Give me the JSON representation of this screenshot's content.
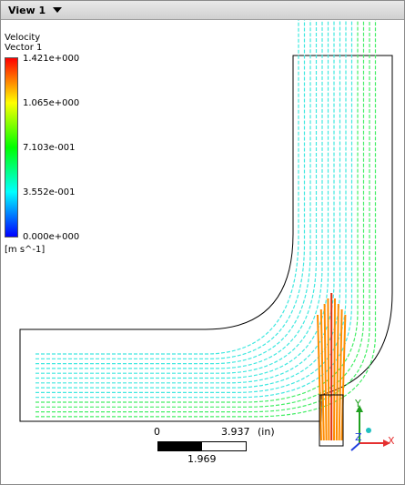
{
  "header": {
    "title": "View 1"
  },
  "legend": {
    "title_line1": "Velocity",
    "title_line2": "Vector 1",
    "ticks": [
      "1.421e+000",
      "1.065e+000",
      "7.103e-001",
      "3.552e-001",
      "0.000e+000"
    ],
    "units": "[m s^-1]",
    "colors": [
      "#ff0000",
      "#ffff00",
      "#00ff00",
      "#00ffff",
      "#0000ff"
    ]
  },
  "scale": {
    "zero": "0",
    "max": "3.937",
    "unit": "(in)",
    "mid": "1.969"
  },
  "axes": {
    "x": "X",
    "y": "Y",
    "z": "Z"
  },
  "colors": {
    "flow_inlet": "#40e8e0",
    "flow_jet": "#ff8c00",
    "flow_outlet": "#44ee66",
    "axis_x": "#e53030",
    "axis_y": "#20a020",
    "axis_z": "#2040e0"
  }
}
